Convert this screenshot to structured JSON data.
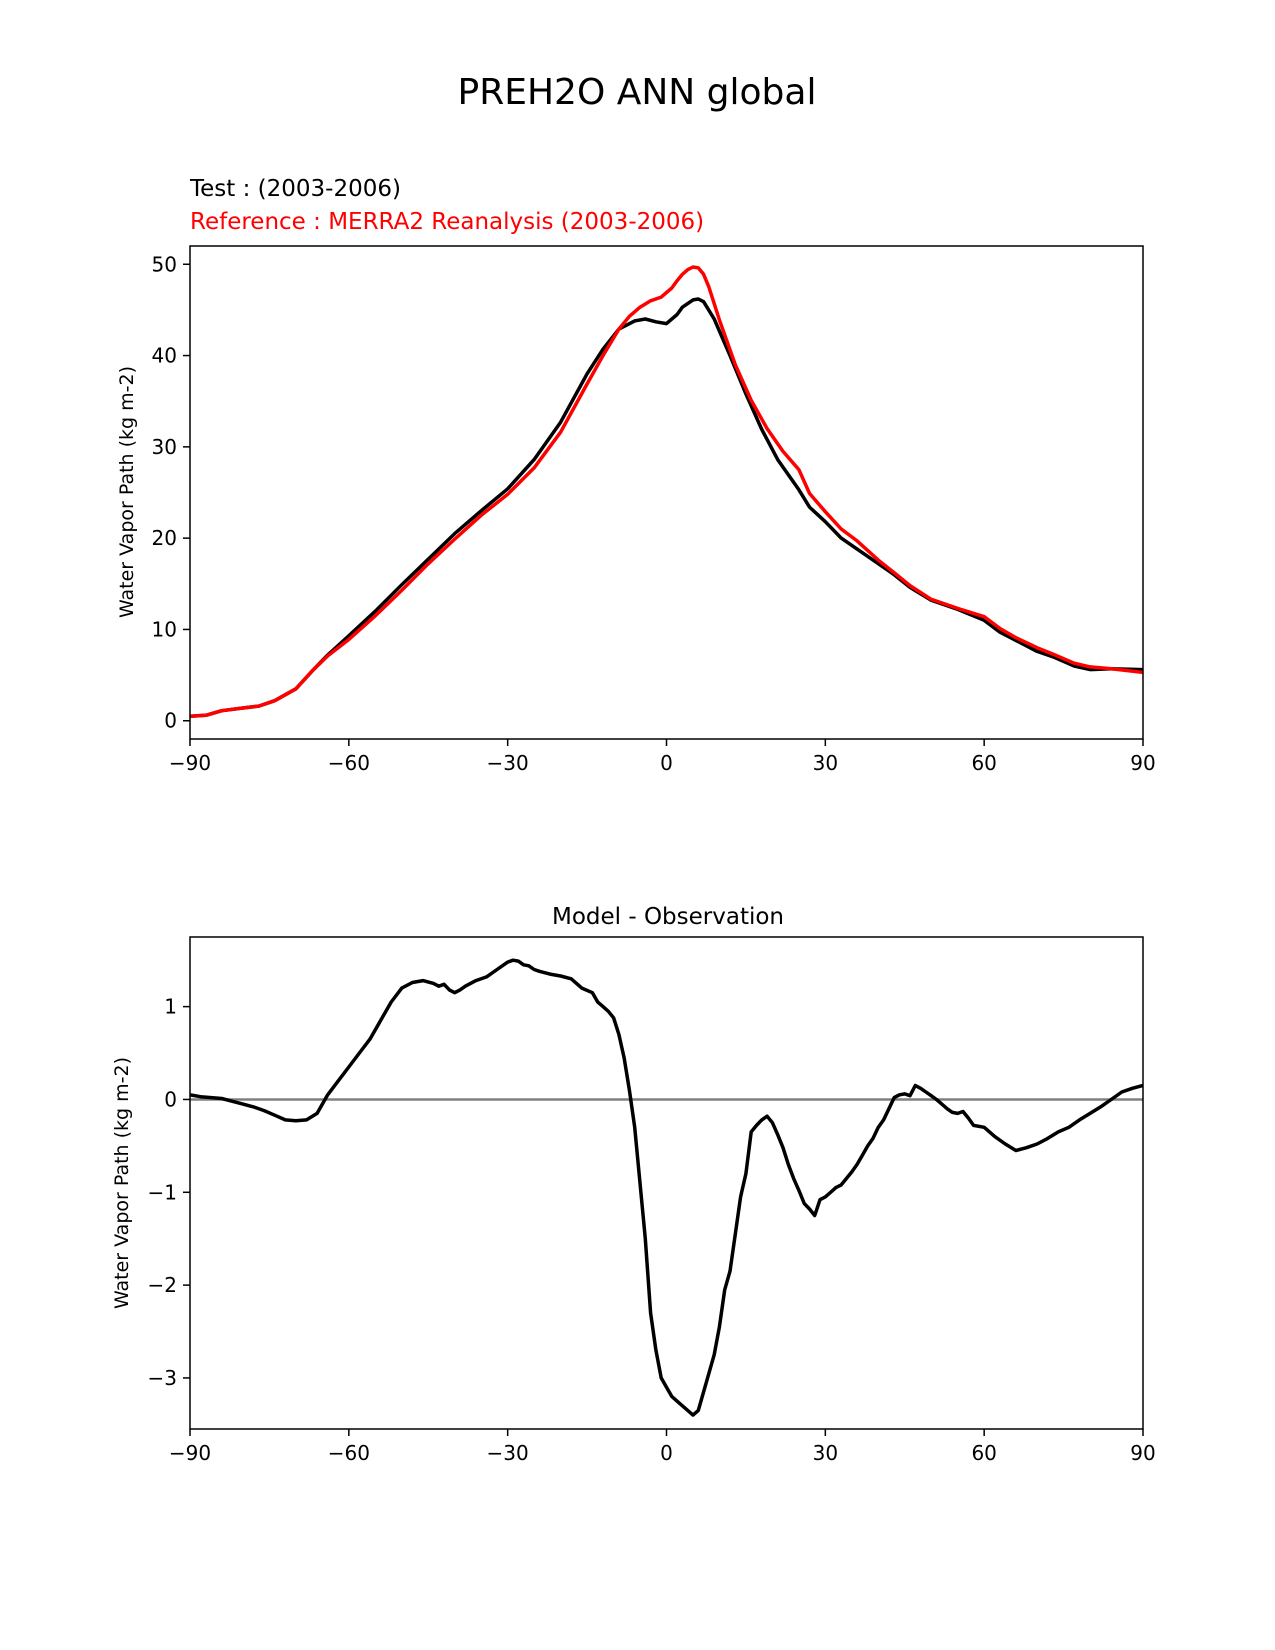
{
  "suptitle": "PREH2O ANN global",
  "chart_data": [
    {
      "type": "line",
      "title_test": "Test :  (2003-2006)",
      "title_ref": "Reference : MERRA2 Reanalysis (2003-2006)",
      "xlabel": "",
      "ylabel": "Water Vapor Path (kg m-2)",
      "xlim": [
        -90,
        90
      ],
      "ylim": [
        -2,
        52
      ],
      "xticks": [
        -90,
        -60,
        -30,
        0,
        30,
        60,
        90
      ],
      "xtick_labels": [
        "−90",
        "−60",
        "−30",
        "0",
        "30",
        "60",
        "90"
      ],
      "yticks": [
        0,
        10,
        20,
        30,
        40,
        50
      ],
      "ytick_labels": [
        "0",
        "10",
        "20",
        "30",
        "40",
        "50"
      ],
      "series": [
        {
          "name": "Test",
          "color": "#000000",
          "x": [
            -90,
            -87,
            -84,
            -80,
            -77,
            -74,
            -70,
            -67,
            -64,
            -60,
            -55,
            -50,
            -45,
            -40,
            -35,
            -30,
            -25,
            -20,
            -15,
            -12,
            -9,
            -6,
            -4,
            -2,
            0,
            2,
            3,
            5,
            6,
            7,
            9,
            12,
            15,
            18,
            21,
            25,
            27,
            30,
            33,
            36,
            40,
            43,
            46,
            50,
            55,
            60,
            63,
            66,
            70,
            73,
            77,
            80,
            84,
            90
          ],
          "y": [
            0.5,
            0.6,
            1.1,
            1.4,
            1.6,
            2.2,
            3.5,
            5.4,
            7.2,
            9.3,
            12.0,
            14.9,
            17.7,
            20.5,
            23.0,
            25.4,
            28.6,
            32.7,
            38.0,
            40.7,
            42.9,
            43.8,
            44.0,
            43.7,
            43.5,
            44.5,
            45.3,
            46.1,
            46.2,
            45.9,
            44.0,
            40.0,
            35.8,
            31.9,
            28.6,
            25.3,
            23.4,
            21.8,
            20.0,
            18.8,
            17.2,
            16.0,
            14.6,
            13.2,
            12.2,
            11.0,
            9.7,
            8.8,
            7.6,
            7.0,
            6.0,
            5.6,
            5.7,
            5.6
          ]
        },
        {
          "name": "Reference : MERRA2 Reanalysis (2003-2006)",
          "color": "#ff0000",
          "x": [
            -90,
            -87,
            -84,
            -80,
            -77,
            -74,
            -70,
            -67,
            -64,
            -60,
            -55,
            -50,
            -45,
            -40,
            -35,
            -30,
            -25,
            -20,
            -15,
            -12,
            -9,
            -7,
            -5,
            -3,
            -1,
            1,
            2,
            3,
            4,
            5,
            6,
            7,
            8,
            10,
            13,
            16,
            19,
            22,
            25,
            27,
            30,
            33,
            36,
            40,
            43,
            46,
            50,
            55,
            60,
            63,
            66,
            70,
            73,
            77,
            80,
            84,
            90
          ],
          "y": [
            0.5,
            0.6,
            1.1,
            1.4,
            1.6,
            2.2,
            3.5,
            5.4,
            7.1,
            8.9,
            11.5,
            14.3,
            17.2,
            19.9,
            22.5,
            24.8,
            27.7,
            31.6,
            36.9,
            40.0,
            42.9,
            44.3,
            45.3,
            46.0,
            46.4,
            47.4,
            48.2,
            48.9,
            49.4,
            49.7,
            49.6,
            48.9,
            47.5,
            43.9,
            39.0,
            35.1,
            32.0,
            29.5,
            27.5,
            24.9,
            22.9,
            21.0,
            19.7,
            17.6,
            16.2,
            14.8,
            13.3,
            12.3,
            11.4,
            10.1,
            9.1,
            8.0,
            7.3,
            6.3,
            5.9,
            5.7,
            5.3
          ]
        }
      ]
    },
    {
      "type": "line",
      "title": "Model - Observation",
      "xlabel": "",
      "ylabel": "Water Vapor Path (kg m-2)",
      "xlim": [
        -90,
        90
      ],
      "ylim": [
        -3.55,
        1.75
      ],
      "xticks": [
        -90,
        -60,
        -30,
        0,
        30,
        60,
        90
      ],
      "xtick_labels": [
        "−90",
        "−60",
        "−30",
        "0",
        "30",
        "60",
        "90"
      ],
      "yticks": [
        -3,
        -2,
        -1,
        0,
        1
      ],
      "ytick_labels": [
        "−3",
        "−2",
        "−1",
        "0",
        "1"
      ],
      "zero_line_color": "#808080",
      "series": [
        {
          "name": "Model - Observation",
          "color": "#000000",
          "x": [
            -90,
            -88,
            -86,
            -84,
            -82,
            -80,
            -78,
            -76,
            -74,
            -72,
            -70,
            -68,
            -66,
            -64,
            -62,
            -60,
            -58,
            -56,
            -54,
            -52,
            -50,
            -48,
            -46,
            -44,
            -43,
            -42,
            -41,
            -40,
            -39,
            -38,
            -36,
            -34,
            -32,
            -30,
            -29,
            -28,
            -27,
            -26,
            -25,
            -24,
            -22,
            -20,
            -18,
            -16,
            -14,
            -13,
            -12,
            -11,
            -10,
            -9,
            -8,
            -7,
            -6,
            -5,
            -4,
            -3,
            -2,
            -1,
            0,
            1,
            2,
            3,
            4,
            5,
            6,
            7,
            8,
            9,
            10,
            11,
            12,
            13,
            14,
            15,
            16,
            17,
            18,
            19,
            20,
            21,
            22,
            23,
            24,
            25,
            26,
            27,
            28,
            29,
            30,
            31,
            32,
            33,
            34,
            35,
            36,
            37,
            38,
            39,
            40,
            41,
            42,
            43,
            44,
            45,
            46,
            47,
            48,
            49,
            50,
            51,
            52,
            53,
            54,
            55,
            56,
            57,
            58,
            60,
            62,
            64,
            66,
            68,
            70,
            72,
            74,
            76,
            78,
            80,
            82,
            84,
            86,
            88,
            90
          ],
          "y": [
            0.05,
            0.03,
            0.02,
            0.01,
            -0.02,
            -0.05,
            -0.08,
            -0.12,
            -0.17,
            -0.22,
            -0.23,
            -0.22,
            -0.15,
            0.05,
            0.2,
            0.35,
            0.5,
            0.65,
            0.85,
            1.05,
            1.2,
            1.26,
            1.28,
            1.25,
            1.22,
            1.24,
            1.18,
            1.15,
            1.18,
            1.22,
            1.28,
            1.32,
            1.4,
            1.48,
            1.5,
            1.49,
            1.45,
            1.44,
            1.4,
            1.38,
            1.35,
            1.33,
            1.3,
            1.2,
            1.15,
            1.05,
            1.0,
            0.95,
            0.88,
            0.7,
            0.45,
            0.1,
            -0.3,
            -0.9,
            -1.5,
            -2.3,
            -2.7,
            -3.0,
            -3.1,
            -3.2,
            -3.25,
            -3.3,
            -3.35,
            -3.4,
            -3.35,
            -3.15,
            -2.95,
            -2.75,
            -2.45,
            -2.05,
            -1.85,
            -1.45,
            -1.05,
            -0.8,
            -0.35,
            -0.28,
            -0.22,
            -0.18,
            -0.25,
            -0.38,
            -0.52,
            -0.7,
            -0.85,
            -0.98,
            -1.12,
            -1.18,
            -1.25,
            -1.08,
            -1.05,
            -1.0,
            -0.95,
            -0.92,
            -0.85,
            -0.78,
            -0.7,
            -0.6,
            -0.5,
            -0.42,
            -0.3,
            -0.22,
            -0.1,
            0.02,
            0.05,
            0.06,
            0.04,
            0.15,
            0.12,
            0.08,
            0.04,
            0.0,
            -0.05,
            -0.1,
            -0.14,
            -0.15,
            -0.13,
            -0.2,
            -0.28,
            -0.3,
            -0.4,
            -0.48,
            -0.55,
            -0.52,
            -0.48,
            -0.42,
            -0.35,
            -0.3,
            -0.22,
            -0.15,
            -0.08,
            0.0,
            0.08,
            0.12,
            0.15
          ]
        }
      ]
    }
  ]
}
